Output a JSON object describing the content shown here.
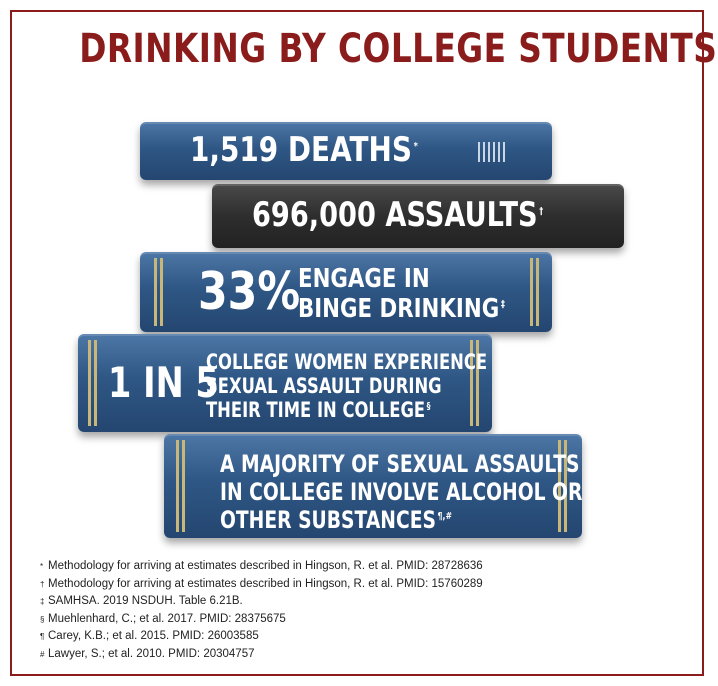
{
  "title": "DRINKING BY COLLEGE STUDENTS",
  "books": [
    {
      "text": "1,519 DEATHS",
      "mark": "*"
    },
    {
      "text": "696,000 ASSAULTS",
      "mark": "†"
    },
    {
      "big": "33%",
      "line1": "ENGAGE IN",
      "line2": "BINGE DRINKING",
      "mark": "‡"
    },
    {
      "big": "1 IN 5",
      "line1": "COLLEGE WOMEN EXPERIENCE",
      "line2": "SEXUAL ASSAULT DURING",
      "line3": "THEIR TIME IN COLLEGE",
      "mark": "§"
    },
    {
      "line1": "A MAJORITY OF SEXUAL ASSAULTS",
      "line2": "IN COLLEGE INVOLVE ALCOHOL OR",
      "line3": "OTHER SUBSTANCES",
      "mark": "¶,#"
    }
  ],
  "footnotes": [
    {
      "mark": "*",
      "text": "Methodology for arriving at estimates described in Hingson, R. et al. PMID: 28728636"
    },
    {
      "mark": "†",
      "text": "Methodology for arriving at estimates described in Hingson, R. et al. PMID: 15760289"
    },
    {
      "mark": "‡",
      "text": "SAMHSA. 2019 NSDUH. Table 6.21B."
    },
    {
      "mark": "§",
      "text": "Muehlenhard, C.; et al. 2017. PMID: 28375675"
    },
    {
      "mark": "¶",
      "text": "Carey, K.B.; et al. 2015. PMID: 26003585"
    },
    {
      "mark": "#",
      "text": "Lawyer, S.; et al. 2010. PMID: 20304757"
    }
  ],
  "colors": {
    "title": "#8b1c1c",
    "book_blue": "#2f5785",
    "book_dark": "#2e2e2e",
    "gold": "#c9b77a"
  }
}
